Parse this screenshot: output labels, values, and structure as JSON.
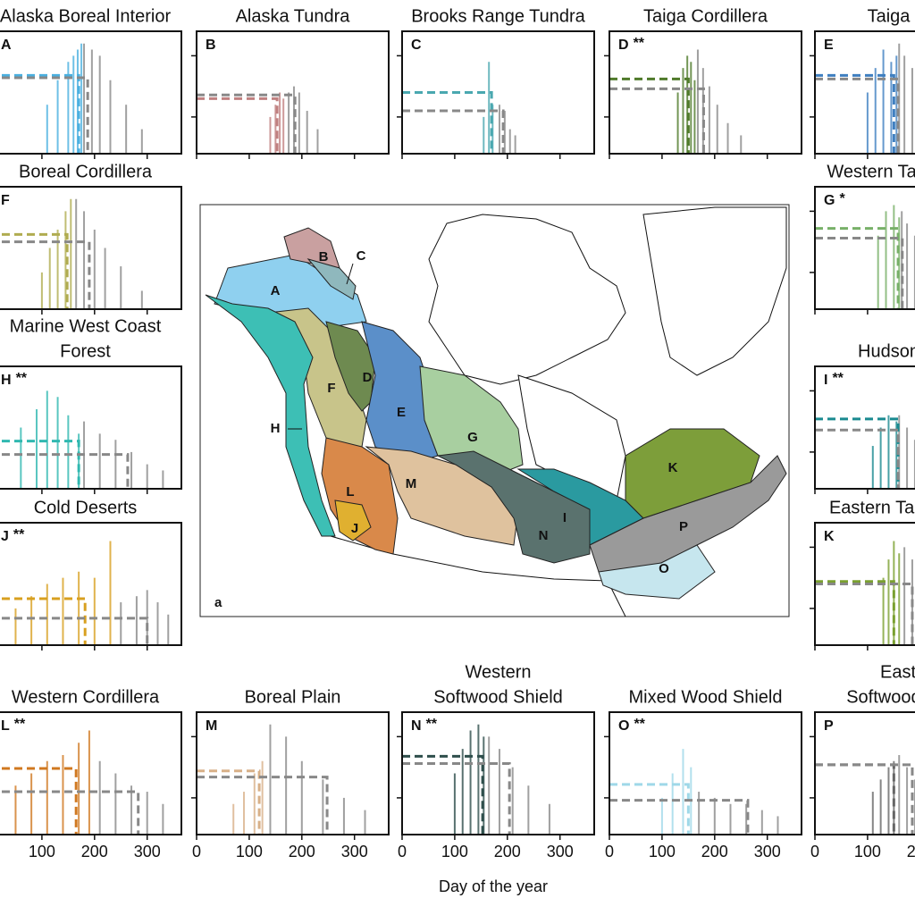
{
  "figure": {
    "x_label": "Day of the year",
    "map_label": "a"
  },
  "map": {
    "regions": [
      {
        "label": "A",
        "color": "#8fd0ef"
      },
      {
        "label": "B",
        "color": "#c9a0a0"
      },
      {
        "label": "C",
        "color": "#8fb8bd"
      },
      {
        "label": "D",
        "color": "#6e8a50"
      },
      {
        "label": "E",
        "color": "#5b8fc9"
      },
      {
        "label": "F",
        "color": "#c8c48a"
      },
      {
        "label": "G",
        "color": "#a8cfa0"
      },
      {
        "label": "H",
        "color": "#3dbfb5"
      },
      {
        "label": "I",
        "color": "#2a9aa0"
      },
      {
        "label": "J",
        "color": "#e0b030"
      },
      {
        "label": "K",
        "color": "#7d9e3a"
      },
      {
        "label": "L",
        "color": "#d9894a"
      },
      {
        "label": "M",
        "color": "#dfc29e"
      },
      {
        "label": "N",
        "color": "#5a726e"
      },
      {
        "label": "O",
        "color": "#c6e6ee"
      },
      {
        "label": "P",
        "color": "#9a9a9a"
      }
    ]
  },
  "chart_data": [
    {
      "type": "bar",
      "title": [
        "Alaska Boreal Interior"
      ],
      "label": "A",
      "xlim": [
        0,
        365
      ],
      "xticks": [
        100,
        200,
        300
      ],
      "ylim": [
        0,
        1
      ],
      "yticks": [
        0.3,
        0.8
      ],
      "series": [
        {
          "color": "#4ab0e0",
          "x": [
            110,
            130,
            150,
            160,
            168,
            175
          ],
          "values": [
            0.4,
            0.6,
            0.75,
            0.8,
            0.85,
            0.9
          ],
          "median": 170,
          "level": 0.64
        },
        {
          "color": "#888888",
          "x": [
            180,
            195,
            210,
            230,
            260,
            290
          ],
          "values": [
            0.9,
            0.85,
            0.8,
            0.6,
            0.4,
            0.2
          ],
          "median": 187,
          "level": 0.62
        }
      ]
    },
    {
      "type": "bar",
      "title": [
        "Alaska Tundra"
      ],
      "label": "B",
      "xlim": [
        0,
        365
      ],
      "xticks": [
        0,
        100,
        200,
        300
      ],
      "ylim": [
        0,
        1
      ],
      "yticks": [
        0.3,
        0.8
      ],
      "series": [
        {
          "color": "#c08080",
          "x": [
            140,
            150,
            158,
            165
          ],
          "values": [
            0.3,
            0.4,
            0.5,
            0.45
          ],
          "median": 153,
          "level": 0.45
        },
        {
          "color": "#888888",
          "x": [
            175,
            185,
            195,
            210,
            230
          ],
          "values": [
            0.5,
            0.55,
            0.5,
            0.35,
            0.2
          ],
          "median": 187,
          "level": 0.48
        }
      ]
    },
    {
      "type": "bar",
      "title": [
        "Brooks Range Tundra"
      ],
      "label": "C",
      "xlim": [
        0,
        365
      ],
      "xticks": [
        0,
        100,
        200,
        300
      ],
      "ylim": [
        0,
        1
      ],
      "yticks": [
        0.3,
        0.8
      ],
      "series": [
        {
          "color": "#4aa8b0",
          "x": [
            155,
            165,
            172
          ],
          "values": [
            0.3,
            0.75,
            0.4
          ],
          "median": 170,
          "level": 0.5
        },
        {
          "color": "#888888",
          "x": [
            185,
            195,
            205,
            215
          ],
          "values": [
            0.4,
            0.35,
            0.2,
            0.15
          ],
          "median": 192,
          "level": 0.35
        }
      ]
    },
    {
      "type": "bar",
      "title": [
        "Taiga Cordillera"
      ],
      "label": "D",
      "stars": "**",
      "xlim": [
        0,
        365
      ],
      "xticks": [
        0,
        100,
        200,
        300
      ],
      "ylim": [
        0,
        1
      ],
      "yticks": [
        0.3,
        0.8
      ],
      "series": [
        {
          "color": "#4f7a2a",
          "x": [
            130,
            140,
            148,
            155,
            162
          ],
          "values": [
            0.5,
            0.7,
            0.8,
            0.75,
            0.6
          ],
          "median": 150,
          "level": 0.61
        },
        {
          "color": "#888888",
          "x": [
            168,
            178,
            190,
            205,
            225,
            250
          ],
          "values": [
            0.85,
            0.7,
            0.55,
            0.4,
            0.25,
            0.15
          ],
          "median": 179,
          "level": 0.53
        }
      ]
    },
    {
      "type": "bar",
      "title": [
        "Taiga Plain"
      ],
      "label": "E",
      "xlim": [
        0,
        365
      ],
      "xticks": [
        0,
        100,
        200,
        300
      ],
      "ylim": [
        0,
        1
      ],
      "yticks": [
        0.3,
        0.8
      ],
      "series": [
        {
          "color": "#3f7fc0",
          "x": [
            100,
            115,
            130,
            145,
            155
          ],
          "values": [
            0.5,
            0.7,
            0.85,
            0.75,
            0.8
          ],
          "median": 150,
          "level": 0.64
        },
        {
          "color": "#888888",
          "x": [
            160,
            170,
            185,
            200
          ],
          "values": [
            0.9,
            0.8,
            0.7,
            0.6
          ],
          "median": 158,
          "level": 0.61
        }
      ]
    },
    {
      "type": "bar",
      "title": [
        "Boreal Cordillera"
      ],
      "label": "F",
      "xlim": [
        0,
        365
      ],
      "xticks": [
        100,
        200,
        300
      ],
      "ylim": [
        0,
        1
      ],
      "yticks": [
        0.3,
        0.8
      ],
      "series": [
        {
          "color": "#b0ac50",
          "x": [
            100,
            115,
            130,
            145,
            155
          ],
          "values": [
            0.3,
            0.5,
            0.65,
            0.8,
            0.9
          ],
          "median": 148,
          "level": 0.61
        },
        {
          "color": "#888888",
          "x": [
            165,
            180,
            200,
            220,
            250,
            290
          ],
          "values": [
            0.9,
            0.8,
            0.65,
            0.5,
            0.35,
            0.15
          ],
          "median": 190,
          "level": 0.55
        }
      ]
    },
    {
      "type": "bar",
      "title": [
        "Western Taiga Shield"
      ],
      "label": "G",
      "stars": "*",
      "xlim": [
        0,
        365
      ],
      "xticks": [
        0,
        100,
        200,
        300
      ],
      "ylim": [
        0,
        1
      ],
      "yticks": [
        0.3,
        0.8
      ],
      "series": [
        {
          "color": "#78b068",
          "x": [
            120,
            135,
            150,
            160
          ],
          "values": [
            0.6,
            0.8,
            0.85,
            0.75
          ],
          "median": 158,
          "level": 0.66
        },
        {
          "color": "#888888",
          "x": [
            165,
            175,
            190
          ],
          "values": [
            0.8,
            0.7,
            0.6
          ],
          "median": 166,
          "level": 0.58
        }
      ]
    },
    {
      "type": "bar",
      "title": [
        "Marine West Coast",
        "Forest"
      ],
      "label": "H",
      "stars": "**",
      "xlim": [
        0,
        365
      ],
      "xticks": [
        100,
        200,
        300
      ],
      "ylim": [
        0,
        1
      ],
      "yticks": [
        0.3,
        0.8
      ],
      "series": [
        {
          "color": "#30b8b0",
          "x": [
            60,
            90,
            110,
            130,
            150,
            170
          ],
          "values": [
            0.5,
            0.65,
            0.8,
            0.75,
            0.6,
            0.45
          ],
          "median": 170,
          "level": 0.39
        },
        {
          "color": "#888888",
          "x": [
            180,
            210,
            240,
            270,
            300,
            330
          ],
          "values": [
            0.55,
            0.45,
            0.4,
            0.3,
            0.2,
            0.15
          ],
          "median": 263,
          "level": 0.28
        }
      ]
    },
    {
      "type": "bar",
      "title": [
        "Hudson Plain"
      ],
      "label": "I",
      "stars": "**",
      "xlim": [
        0,
        365
      ],
      "xticks": [
        0,
        100,
        200,
        300
      ],
      "ylim": [
        0,
        1
      ],
      "yticks": [
        0.3,
        0.8
      ],
      "series": [
        {
          "color": "#1a8a90",
          "x": [
            110,
            125,
            140,
            155
          ],
          "values": [
            0.35,
            0.5,
            0.6,
            0.55
          ],
          "median": 158,
          "level": 0.57
        },
        {
          "color": "#888888",
          "x": [
            160,
            175,
            190
          ],
          "values": [
            0.6,
            0.5,
            0.4
          ],
          "median": 158,
          "level": 0.48
        }
      ]
    },
    {
      "type": "bar",
      "title": [
        "Cold Deserts"
      ],
      "label": "J",
      "stars": "**",
      "xlim": [
        0,
        365
      ],
      "xticks": [
        100,
        200,
        300
      ],
      "ylim": [
        0,
        1
      ],
      "yticks": [
        0.3,
        0.8
      ],
      "series": [
        {
          "color": "#d8a020",
          "x": [
            50,
            80,
            110,
            140,
            170,
            200,
            230
          ],
          "values": [
            0.3,
            0.4,
            0.5,
            0.55,
            0.6,
            0.55,
            0.85
          ],
          "median": 182,
          "level": 0.38
        },
        {
          "color": "#888888",
          "x": [
            250,
            280,
            300,
            320,
            340
          ],
          "values": [
            0.35,
            0.4,
            0.45,
            0.35,
            0.25
          ],
          "median": 300,
          "level": 0.22
        }
      ]
    },
    {
      "type": "bar",
      "title": [
        "Eastern Taiga Shield"
      ],
      "label": "K",
      "xlim": [
        0,
        365
      ],
      "xticks": [
        0,
        100,
        200,
        300
      ],
      "ylim": [
        0,
        1
      ],
      "yticks": [
        0.3,
        0.8
      ],
      "series": [
        {
          "color": "#7aa030",
          "x": [
            130,
            140,
            150,
            160
          ],
          "values": [
            0.55,
            0.7,
            0.85,
            0.75
          ],
          "median": 150,
          "level": 0.52
        },
        {
          "color": "#888888",
          "x": [
            170,
            185,
            200
          ],
          "values": [
            0.8,
            0.7,
            0.55
          ],
          "median": 185,
          "level": 0.5
        }
      ]
    },
    {
      "type": "bar",
      "title": [
        "Western Cordillera"
      ],
      "label": "L",
      "stars": "**",
      "xlim": [
        0,
        365
      ],
      "xticks": [
        100,
        200,
        300
      ],
      "ylim": [
        0,
        1
      ],
      "yticks": [
        0.3,
        0.8
      ],
      "series": [
        {
          "color": "#d07820",
          "x": [
            50,
            80,
            110,
            140,
            170,
            190
          ],
          "values": [
            0.4,
            0.5,
            0.6,
            0.65,
            0.75,
            0.85
          ],
          "median": 165,
          "level": 0.54
        },
        {
          "color": "#888888",
          "x": [
            210,
            240,
            270,
            300,
            330
          ],
          "values": [
            0.6,
            0.5,
            0.4,
            0.35,
            0.25
          ],
          "median": 283,
          "level": 0.35
        }
      ]
    },
    {
      "type": "bar",
      "title": [
        "Boreal Plain"
      ],
      "label": "M",
      "xlim": [
        0,
        365
      ],
      "xticks": [
        0,
        100,
        200,
        300
      ],
      "ylim": [
        0,
        1
      ],
      "yticks": [
        0.3,
        0.8
      ],
      "series": [
        {
          "color": "#d8b088",
          "x": [
            70,
            90,
            110,
            125
          ],
          "values": [
            0.25,
            0.35,
            0.5,
            0.6
          ],
          "median": 119,
          "level": 0.52
        },
        {
          "color": "#888888",
          "x": [
            140,
            170,
            200,
            240,
            280,
            320
          ],
          "values": [
            0.9,
            0.8,
            0.6,
            0.45,
            0.3,
            0.2
          ],
          "median": 248,
          "level": 0.47
        }
      ]
    },
    {
      "type": "bar",
      "title": [
        "Western",
        "Softwood Shield"
      ],
      "label": "N",
      "stars": "**",
      "xlim": [
        0,
        365
      ],
      "xticks": [
        0,
        100,
        200,
        300
      ],
      "ylim": [
        0,
        1
      ],
      "yticks": [
        0.3,
        0.8
      ],
      "series": [
        {
          "color": "#2f4f4c",
          "x": [
            100,
            115,
            130,
            145,
            155
          ],
          "values": [
            0.5,
            0.7,
            0.85,
            0.9,
            0.8
          ],
          "median": 153,
          "level": 0.64
        },
        {
          "color": "#888888",
          "x": [
            165,
            185,
            210,
            240,
            280
          ],
          "values": [
            0.8,
            0.7,
            0.55,
            0.4,
            0.25
          ],
          "median": 204,
          "level": 0.58
        }
      ]
    },
    {
      "type": "bar",
      "title": [
        "Mixed Wood Shield"
      ],
      "label": "O",
      "stars": "**",
      "xlim": [
        0,
        365
      ],
      "xticks": [
        0,
        100,
        200,
        300
      ],
      "ylim": [
        0,
        1
      ],
      "yticks": [
        0.3,
        0.8
      ],
      "series": [
        {
          "color": "#9fd8e8",
          "x": [
            100,
            120,
            140,
            155
          ],
          "values": [
            0.3,
            0.5,
            0.7,
            0.55
          ],
          "median": 150,
          "level": 0.41
        },
        {
          "color": "#888888",
          "x": [
            170,
            200,
            230,
            260,
            290,
            320
          ],
          "values": [
            0.35,
            0.3,
            0.25,
            0.25,
            0.2,
            0.15
          ],
          "median": 263,
          "level": 0.28
        }
      ]
    },
    {
      "type": "bar",
      "title": [
        "Eastern",
        "Softwood Shield"
      ],
      "label": "P",
      "xlim": [
        0,
        365
      ],
      "xticks": [
        0,
        100,
        200,
        300
      ],
      "ylim": [
        0,
        1
      ],
      "yticks": [
        0.3,
        0.8
      ],
      "series": [
        {
          "color": "#666666",
          "x": [
            110,
            125,
            140,
            150
          ],
          "values": [
            0.35,
            0.45,
            0.55,
            0.6
          ],
          "median": 150,
          "level": 0.57
        },
        {
          "color": "#888888",
          "x": [
            160,
            175,
            190
          ],
          "values": [
            0.65,
            0.55,
            0.45
          ],
          "median": 185,
          "level": 0.57
        }
      ]
    }
  ]
}
